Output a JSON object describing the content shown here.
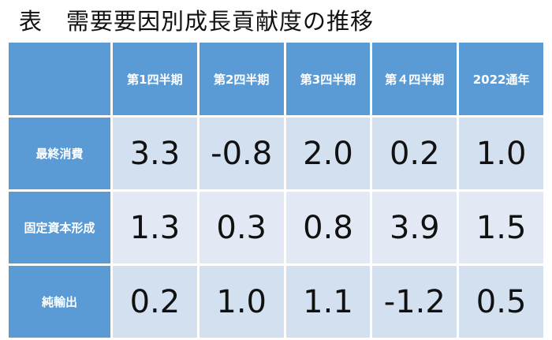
{
  "header": {
    "title": "表　需要要因別成長貢献度の推移"
  },
  "table": {
    "columns": [
      "第1四半期",
      "第2四半期",
      "第3四半期",
      "第４四半期",
      "2022通年"
    ],
    "rows": [
      {
        "label": "最終消費",
        "cells": [
          "3.3",
          "-0.8",
          "2.0",
          "0.2",
          "1.0"
        ]
      },
      {
        "label": "固定資本形成",
        "cells": [
          "1.3",
          "0.3",
          "0.8",
          "3.9",
          "1.5"
        ]
      },
      {
        "label": "純輸出",
        "cells": [
          "0.2",
          "1.0",
          "1.1",
          "-1.2",
          "0.5"
        ]
      }
    ]
  }
}
